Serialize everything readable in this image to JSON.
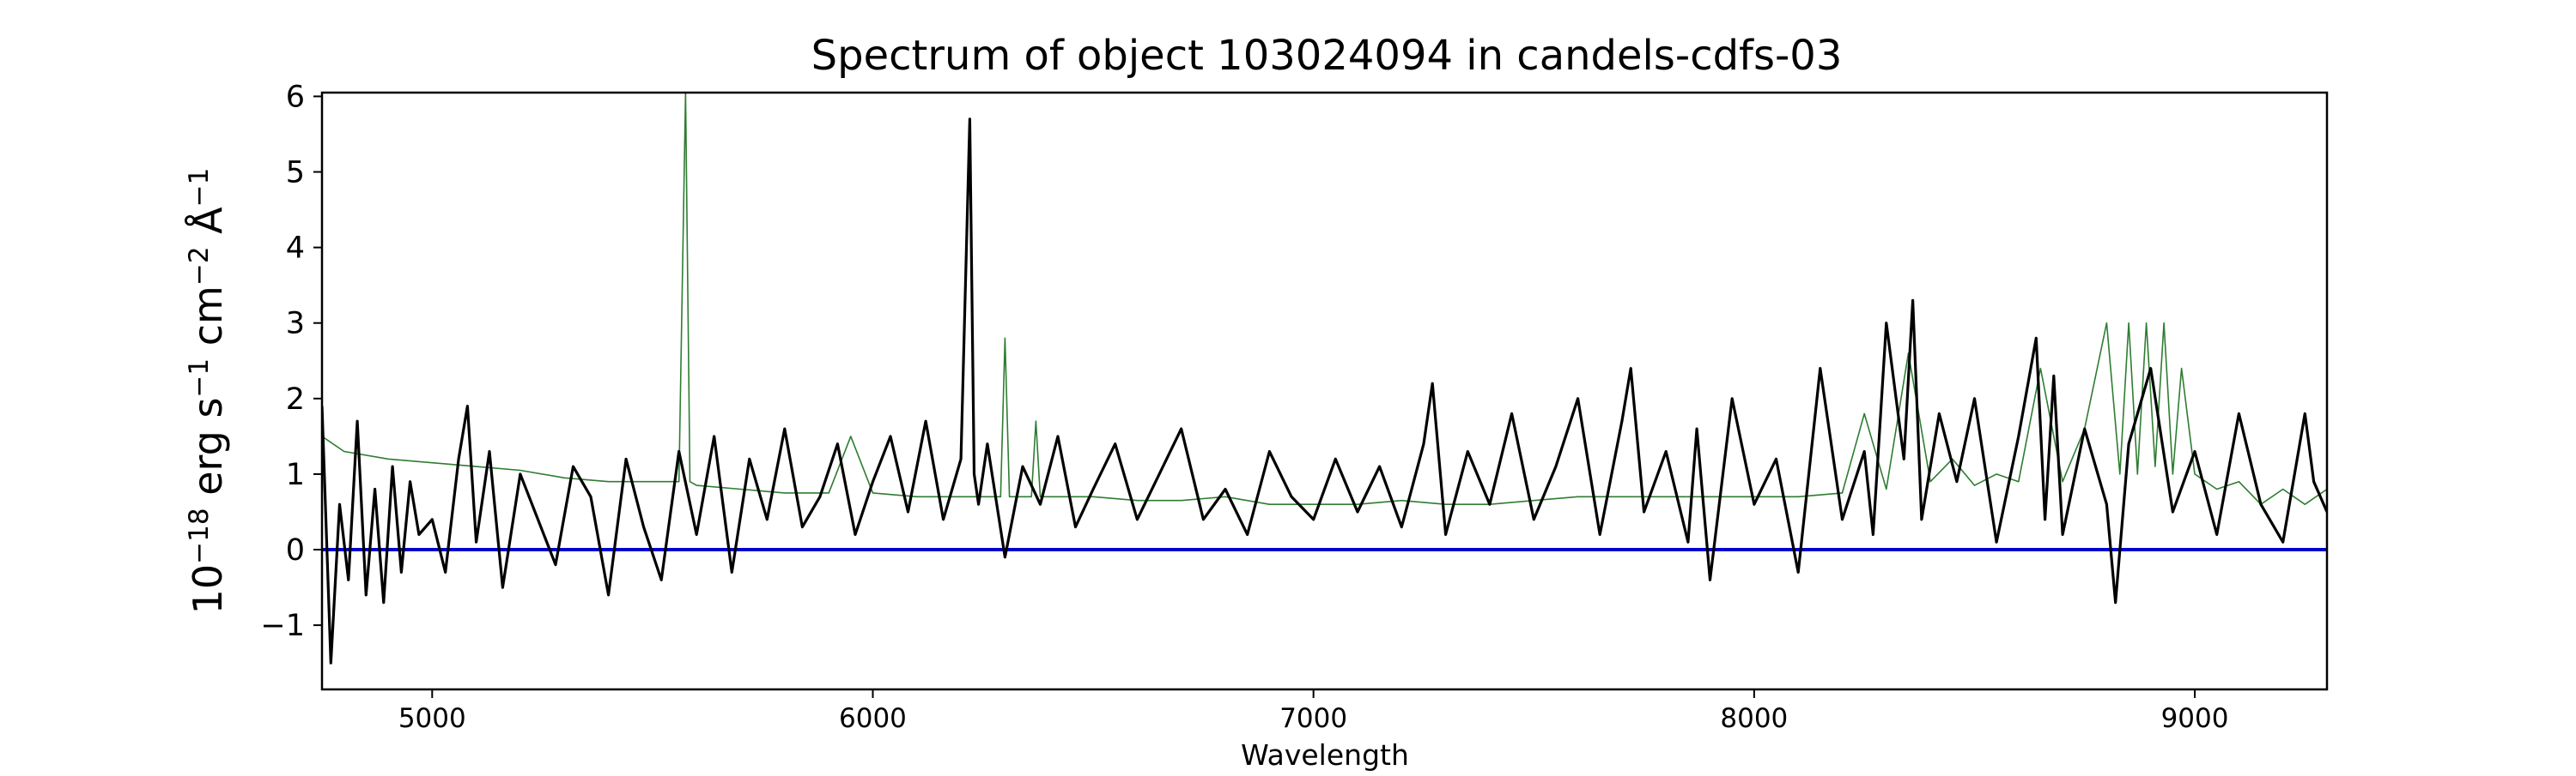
{
  "chart_data": {
    "type": "line",
    "title": "Spectrum of object 103024094 in candels-cdfs-03",
    "xlabel": "Wavelength",
    "ylabel": {
      "base": "10",
      "exp1": "−18",
      "t1": " erg s",
      "exp2": "−1",
      "t2": " cm",
      "exp3": "−2",
      "t3": " Å",
      "exp4": "−1"
    },
    "xlim": [
      4750,
      9300
    ],
    "ylim": [
      -1.85,
      6.05
    ],
    "xticks": [
      5000,
      6000,
      7000,
      8000,
      9000
    ],
    "xtick_labels": [
      "5000",
      "6000",
      "7000",
      "8000",
      "9000"
    ],
    "yticks": [
      -1,
      0,
      1,
      2,
      3,
      4,
      5,
      6
    ],
    "ytick_labels": [
      "−1",
      "0",
      "1",
      "2",
      "3",
      "4",
      "5",
      "6"
    ],
    "grid": false,
    "legend": "none",
    "series": [
      {
        "role": "flux",
        "color": "#000000",
        "x": [
          4750,
          4770,
          4790,
          4810,
          4830,
          4850,
          4870,
          4890,
          4910,
          4930,
          4950,
          4970,
          5000,
          5030,
          5060,
          5080,
          5100,
          5130,
          5160,
          5200,
          5240,
          5280,
          5320,
          5360,
          5400,
          5440,
          5480,
          5520,
          5560,
          5600,
          5640,
          5680,
          5720,
          5760,
          5800,
          5840,
          5880,
          5920,
          5960,
          6000,
          6040,
          6080,
          6120,
          6160,
          6200,
          6220,
          6230,
          6240,
          6260,
          6300,
          6340,
          6380,
          6420,
          6460,
          6500,
          6550,
          6600,
          6650,
          6700,
          6750,
          6800,
          6850,
          6900,
          6950,
          7000,
          7050,
          7100,
          7150,
          7200,
          7250,
          7270,
          7300,
          7350,
          7400,
          7450,
          7500,
          7550,
          7600,
          7650,
          7700,
          7720,
          7750,
          7800,
          7850,
          7870,
          7900,
          7950,
          8000,
          8050,
          8100,
          8150,
          8200,
          8250,
          8270,
          8300,
          8340,
          8360,
          8380,
          8420,
          8460,
          8500,
          8550,
          8600,
          8640,
          8660,
          8680,
          8700,
          8750,
          8800,
          8820,
          8850,
          8900,
          8950,
          9000,
          9050,
          9100,
          9150,
          9200,
          9250,
          9270,
          9300
        ],
        "y": [
          1.9,
          -1.5,
          0.6,
          -0.4,
          1.7,
          -0.6,
          0.8,
          -0.7,
          1.1,
          -0.3,
          0.9,
          0.2,
          0.4,
          -0.3,
          1.2,
          1.9,
          0.1,
          1.3,
          -0.5,
          1.0,
          0.4,
          -0.2,
          1.1,
          0.7,
          -0.6,
          1.2,
          0.3,
          -0.4,
          1.3,
          0.2,
          1.5,
          -0.3,
          1.2,
          0.4,
          1.6,
          0.3,
          0.7,
          1.4,
          0.2,
          0.9,
          1.5,
          0.5,
          1.7,
          0.4,
          1.2,
          5.7,
          1.0,
          0.6,
          1.4,
          -0.1,
          1.1,
          0.6,
          1.5,
          0.3,
          0.8,
          1.4,
          0.4,
          1.0,
          1.6,
          0.4,
          0.8,
          0.2,
          1.3,
          0.7,
          0.4,
          1.2,
          0.5,
          1.1,
          0.3,
          1.4,
          2.2,
          0.2,
          1.3,
          0.6,
          1.8,
          0.4,
          1.1,
          2.0,
          0.2,
          1.7,
          2.4,
          0.5,
          1.3,
          0.1,
          1.6,
          -0.4,
          2.0,
          0.6,
          1.2,
          -0.3,
          2.4,
          0.4,
          1.3,
          0.2,
          3.0,
          1.2,
          3.3,
          0.4,
          1.8,
          0.9,
          2.0,
          0.1,
          1.5,
          2.8,
          0.4,
          2.3,
          0.2,
          1.6,
          0.6,
          -0.7,
          1.4,
          2.4,
          0.5,
          1.3,
          0.2,
          1.8,
          0.6,
          0.1,
          1.8,
          0.9,
          0.5
        ]
      },
      {
        "role": "model",
        "color": "#2e7d32",
        "x": [
          4750,
          4800,
          4900,
          5000,
          5100,
          5200,
          5300,
          5400,
          5500,
          5560,
          5575,
          5585,
          5600,
          5700,
          5800,
          5900,
          5950,
          6000,
          6100,
          6200,
          6290,
          6300,
          6310,
          6360,
          6370,
          6380,
          6500,
          6600,
          6700,
          6800,
          6900,
          7000,
          7100,
          7200,
          7300,
          7400,
          7500,
          7600,
          7700,
          7800,
          7900,
          8000,
          8100,
          8200,
          8250,
          8300,
          8350,
          8400,
          8450,
          8500,
          8550,
          8600,
          8650,
          8700,
          8750,
          8800,
          8830,
          8850,
          8870,
          8890,
          8910,
          8930,
          8950,
          8970,
          9000,
          9050,
          9100,
          9150,
          9200,
          9250,
          9300
        ],
        "y": [
          1.5,
          1.3,
          1.2,
          1.15,
          1.1,
          1.05,
          0.95,
          0.9,
          0.9,
          0.9,
          6.05,
          0.9,
          0.85,
          0.8,
          0.75,
          0.75,
          1.5,
          0.75,
          0.7,
          0.7,
          0.7,
          2.8,
          0.7,
          0.7,
          1.7,
          0.7,
          0.7,
          0.65,
          0.65,
          0.7,
          0.6,
          0.6,
          0.6,
          0.65,
          0.6,
          0.6,
          0.65,
          0.7,
          0.7,
          0.7,
          0.7,
          0.7,
          0.7,
          0.75,
          1.8,
          0.8,
          2.6,
          0.9,
          1.2,
          0.85,
          1.0,
          0.9,
          2.4,
          0.9,
          1.6,
          3.0,
          1.0,
          3.0,
          1.0,
          3.0,
          1.1,
          3.0,
          1.0,
          2.4,
          1.0,
          0.8,
          0.9,
          0.6,
          0.8,
          0.6,
          0.8
        ]
      },
      {
        "role": "zero-line",
        "color": "#0000cc",
        "x": [
          4750,
          9300
        ],
        "y": [
          0,
          0
        ]
      }
    ]
  }
}
